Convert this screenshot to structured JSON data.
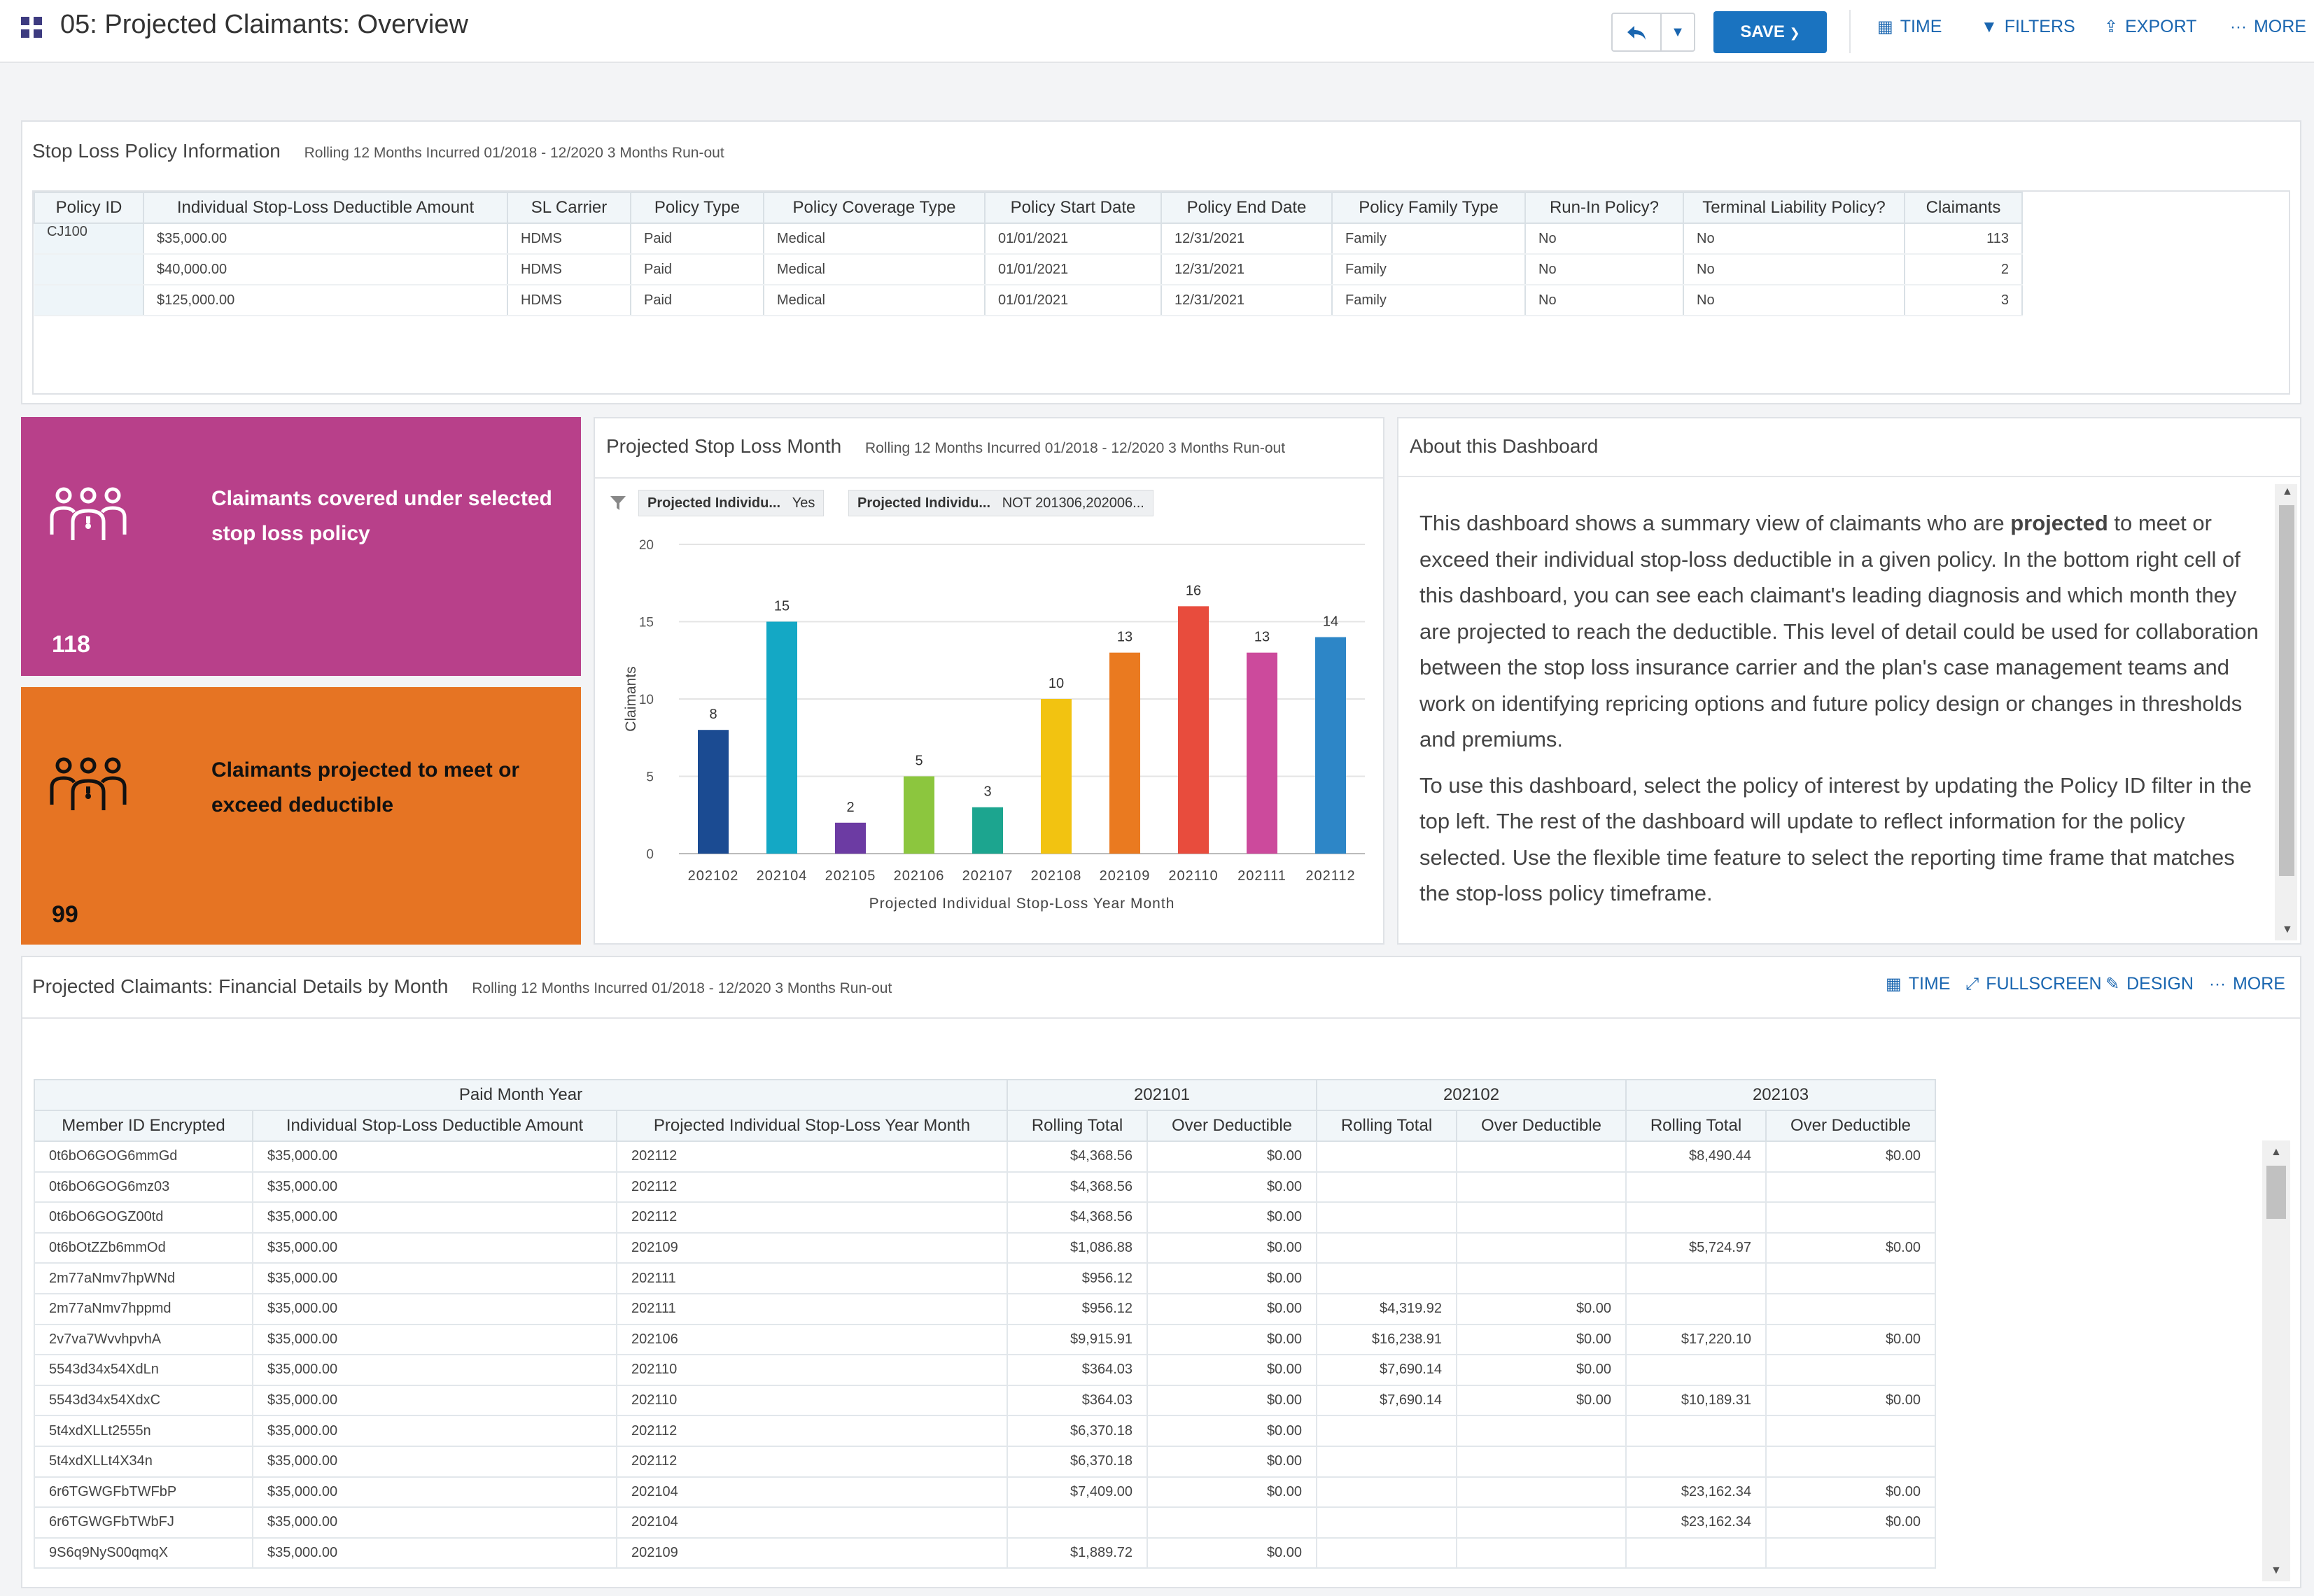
{
  "header": {
    "title": "05: Projected Claimants: Overview",
    "save_label": "SAVE",
    "tools": [
      "TIME",
      "FILTERS",
      "EXPORT",
      "MORE"
    ]
  },
  "policy_panel": {
    "title": "Stop Loss Policy Information",
    "subtitle": "Rolling 12 Months Incurred 01/2018 - 12/2020 3 Months Run-out",
    "columns": [
      "Policy ID",
      "Individual Stop-Loss Deductible Amount",
      "SL Carrier",
      "Policy Type",
      "Policy Coverage Type",
      "Policy Start Date",
      "Policy End Date",
      "Policy Family Type",
      "Run-In Policy?",
      "Terminal Liability Policy?",
      "Claimants"
    ],
    "rows": [
      [
        "CJ100",
        "$35,000.00",
        "HDMS",
        "Paid",
        "Medical",
        "01/01/2021",
        "12/31/2021",
        "Family",
        "No",
        "No",
        "113"
      ],
      [
        "",
        "$40,000.00",
        "HDMS",
        "Paid",
        "Medical",
        "01/01/2021",
        "12/31/2021",
        "Family",
        "No",
        "No",
        "2"
      ],
      [
        "",
        "$125,000.00",
        "HDMS",
        "Paid",
        "Medical",
        "01/01/2021",
        "12/31/2021",
        "Family",
        "No",
        "No",
        "3"
      ]
    ]
  },
  "kpis": [
    {
      "label": "Claimants covered under selected stop loss policy",
      "value": "118",
      "color": "#b8408a"
    },
    {
      "label": "Claimants projected to meet or exceed deductible",
      "value": "99",
      "color": "#e67423"
    }
  ],
  "chart_panel": {
    "title": "Projected Stop Loss Month",
    "subtitle": "Rolling 12 Months Incurred 01/2018 - 12/2020 3 Months Run-out",
    "filters": [
      {
        "name": "Projected Individu...",
        "value": "Yes"
      },
      {
        "name": "Projected Individu...",
        "value": "NOT 201306,202006..."
      }
    ]
  },
  "chart_data": {
    "type": "bar",
    "categories": [
      "202102",
      "202104",
      "202105",
      "202106",
      "202107",
      "202108",
      "202109",
      "202110",
      "202111",
      "202112"
    ],
    "values": [
      8,
      15,
      2,
      5,
      3,
      10,
      13,
      16,
      13,
      14
    ],
    "colors": [
      "#1b4b92",
      "#14a8c5",
      "#6c3ba3",
      "#8cc63e",
      "#1ca58f",
      "#f2c311",
      "#ea7a20",
      "#e84c3d",
      "#cc4a9c",
      "#2d86c7"
    ],
    "ylabel": "Claimants",
    "xlabel": "Projected Individual Stop-Loss Year Month",
    "ylim": [
      0,
      20
    ],
    "yticks": [
      0,
      5,
      10,
      15,
      20
    ],
    "data_labels": true,
    "grid": true
  },
  "about_panel": {
    "title": "About this Dashboard",
    "p1_before": "This dashboard shows a summary view of claimants who are ",
    "p1_bold": "projected",
    "p1_after": " to meet or exceed their individual stop-loss deductible in a given policy. In the bottom right cell of this dashboard, you can see each claimant's leading diagnosis and which month they are projected to reach the deductible. This level of detail could be used for collaboration between the stop loss insurance carrier and the plan's case management teams and work on identifying repricing options and future policy design or changes in thresholds and premiums.",
    "p2": "To use this dashboard, select the policy of interest by updating the Policy ID filter in the top left. The rest of the dashboard will update to reflect information for the policy selected. Use the flexible time feature to select the reporting time frame that matches the stop-loss policy timeframe."
  },
  "financial_panel": {
    "title": "Projected Claimants: Financial Details by Month",
    "subtitle": "Rolling 12 Months Incurred 01/2018 - 12/2020 3 Months Run-out",
    "tools": [
      "TIME",
      "FULLSCREEN",
      "DESIGN",
      "MORE"
    ],
    "group_header": "Paid Month Year",
    "months": [
      "202101",
      "202102",
      "202103"
    ],
    "columns": [
      "Member ID Encrypted",
      "Individual Stop-Loss Deductible Amount",
      "Projected Individual Stop-Loss Year Month",
      "Rolling Total",
      "Over Deductible",
      "Rolling Total",
      "Over Deductible",
      "Rolling Total",
      "Over Deductible"
    ],
    "rows": [
      [
        "0t6bO6GOG6mmGd",
        "$35,000.00",
        "202112",
        "$4,368.56",
        "$0.00",
        "",
        "",
        "$8,490.44",
        "$0.00"
      ],
      [
        "0t6bO6GOG6mz03",
        "$35,000.00",
        "202112",
        "$4,368.56",
        "$0.00",
        "",
        "",
        "",
        ""
      ],
      [
        "0t6bO6GOGZ00td",
        "$35,000.00",
        "202112",
        "$4,368.56",
        "$0.00",
        "",
        "",
        "",
        ""
      ],
      [
        "0t6bOtZZb6mmOd",
        "$35,000.00",
        "202109",
        "$1,086.88",
        "$0.00",
        "",
        "",
        "$5,724.97",
        "$0.00"
      ],
      [
        "2m77aNmv7hpWNd",
        "$35,000.00",
        "202111",
        "$956.12",
        "$0.00",
        "",
        "",
        "",
        ""
      ],
      [
        "2m77aNmv7hppmd",
        "$35,000.00",
        "202111",
        "$956.12",
        "$0.00",
        "$4,319.92",
        "$0.00",
        "",
        ""
      ],
      [
        "2v7va7WvvhpvhA",
        "$35,000.00",
        "202106",
        "$9,915.91",
        "$0.00",
        "$16,238.91",
        "$0.00",
        "$17,220.10",
        "$0.00"
      ],
      [
        "5543d34x54XdLn",
        "$35,000.00",
        "202110",
        "$364.03",
        "$0.00",
        "$7,690.14",
        "$0.00",
        "",
        ""
      ],
      [
        "5543d34x54XdxC",
        "$35,000.00",
        "202110",
        "$364.03",
        "$0.00",
        "$7,690.14",
        "$0.00",
        "$10,189.31",
        "$0.00"
      ],
      [
        "5t4xdXLLt2555n",
        "$35,000.00",
        "202112",
        "$6,370.18",
        "$0.00",
        "",
        "",
        "",
        ""
      ],
      [
        "5t4xdXLLt4X34n",
        "$35,000.00",
        "202112",
        "$6,370.18",
        "$0.00",
        "",
        "",
        "",
        ""
      ],
      [
        "6r6TGWGFbTWFbP",
        "$35,000.00",
        "202104",
        "$7,409.00",
        "$0.00",
        "",
        "",
        "$23,162.34",
        "$0.00"
      ],
      [
        "6r6TGWGFbTWbFJ",
        "$35,000.00",
        "202104",
        "",
        "",
        "",
        "",
        "$23,162.34",
        "$0.00"
      ],
      [
        "9S6q9NyS00qmqX",
        "$35,000.00",
        "202109",
        "$1,889.72",
        "$0.00",
        "",
        "",
        "",
        ""
      ]
    ]
  }
}
